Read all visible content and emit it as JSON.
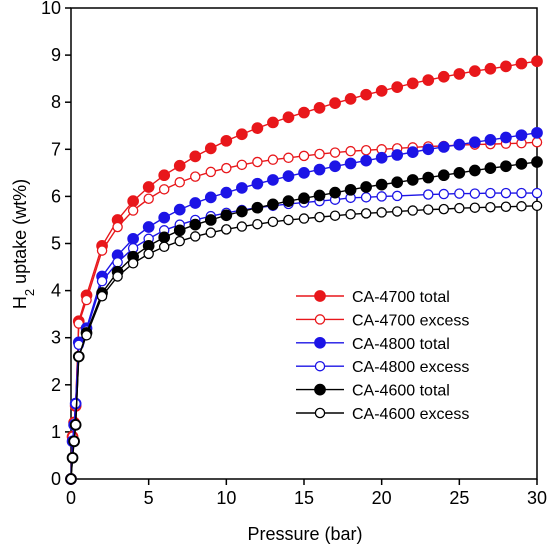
{
  "chart_data": {
    "type": "line",
    "title": "",
    "xlabel": "Pressure (bar)",
    "ylabel_main": "H",
    "ylabel_sub": "2",
    "ylabel_rest": " uptake (wt%)",
    "xlim": [
      0,
      30
    ],
    "ylim": [
      0,
      10
    ],
    "xticks": [
      0,
      5,
      10,
      15,
      20,
      25,
      30
    ],
    "yticks": [
      0,
      1,
      2,
      3,
      4,
      5,
      6,
      7,
      8,
      9,
      10
    ],
    "grid": false,
    "legend_position": "center-right",
    "series": [
      {
        "name": "CA-4700 total",
        "color": "#e8171b",
        "marker": "filled",
        "x": [
          0,
          0.1,
          0.2,
          0.3,
          0.5,
          1,
          2,
          3,
          4,
          5,
          6,
          7,
          8,
          9,
          10,
          11,
          12,
          13,
          14,
          15,
          16,
          17,
          18,
          19,
          20,
          21,
          22,
          23,
          24,
          25,
          26,
          27,
          28,
          29,
          30
        ],
        "values": [
          0,
          0.9,
          1.2,
          1.55,
          3.35,
          3.9,
          4.95,
          5.5,
          5.9,
          6.2,
          6.45,
          6.65,
          6.85,
          7.02,
          7.18,
          7.32,
          7.45,
          7.57,
          7.68,
          7.78,
          7.88,
          7.98,
          8.07,
          8.16,
          8.24,
          8.32,
          8.4,
          8.47,
          8.54,
          8.6,
          8.66,
          8.71,
          8.76,
          8.82,
          8.87
        ]
      },
      {
        "name": "CA-4700 excess",
        "color": "#e8171b",
        "marker": "open",
        "x": [
          0,
          0.1,
          0.2,
          0.3,
          0.5,
          1,
          2,
          3,
          4,
          5,
          6,
          7,
          8,
          9,
          10,
          11,
          12,
          13,
          14,
          15,
          16,
          17,
          18,
          19,
          20,
          21,
          22,
          23,
          24,
          25,
          26,
          27,
          28,
          29,
          30
        ],
        "values": [
          0,
          0.9,
          1.2,
          1.55,
          3.3,
          3.8,
          4.85,
          5.35,
          5.7,
          5.95,
          6.15,
          6.3,
          6.42,
          6.52,
          6.6,
          6.67,
          6.73,
          6.78,
          6.82,
          6.86,
          6.9,
          6.93,
          6.96,
          6.98,
          7.0,
          7.02,
          7.04,
          7.06,
          7.07,
          7.09,
          7.1,
          7.11,
          7.12,
          7.13,
          7.15
        ]
      },
      {
        "name": "CA-4800 total",
        "color": "#1c14e6",
        "marker": "filled",
        "x": [
          0,
          0.1,
          0.2,
          0.3,
          0.5,
          1,
          2,
          3,
          4,
          5,
          6,
          7,
          8,
          9,
          10,
          11,
          12,
          13,
          14,
          15,
          16,
          17,
          18,
          19,
          20,
          21,
          22,
          23,
          24,
          25,
          26,
          27,
          28,
          29,
          30
        ],
        "values": [
          0,
          0.8,
          1.15,
          1.6,
          2.9,
          3.2,
          4.3,
          4.75,
          5.1,
          5.35,
          5.55,
          5.72,
          5.86,
          5.98,
          6.08,
          6.18,
          6.27,
          6.35,
          6.43,
          6.5,
          6.57,
          6.64,
          6.7,
          6.76,
          6.82,
          6.88,
          6.94,
          7.0,
          7.05,
          7.1,
          7.15,
          7.2,
          7.25,
          7.3,
          7.35
        ]
      },
      {
        "name": "CA-4800 excess",
        "color": "#1c14e6",
        "marker": "open",
        "x": [
          0,
          0.1,
          0.2,
          0.3,
          0.5,
          1,
          2,
          3,
          4,
          5,
          6,
          7,
          8,
          9,
          10,
          11,
          12,
          13,
          14,
          15,
          16,
          17,
          18,
          19,
          20,
          21,
          23,
          24,
          25,
          26,
          27,
          28,
          29,
          30
        ],
        "values": [
          0,
          0.8,
          1.15,
          1.6,
          2.85,
          3.15,
          4.2,
          4.6,
          4.9,
          5.1,
          5.28,
          5.4,
          5.5,
          5.58,
          5.65,
          5.71,
          5.76,
          5.8,
          5.84,
          5.87,
          5.9,
          5.93,
          5.97,
          5.98,
          6.0,
          6.01,
          6.04,
          6.05,
          6.06,
          6.06,
          6.07,
          6.07,
          6.07,
          6.07
        ]
      },
      {
        "name": "CA-4600 total",
        "color": "#000000",
        "marker": "filled",
        "x": [
          0,
          0.1,
          0.2,
          0.3,
          0.5,
          1,
          2,
          3,
          4,
          5,
          6,
          7,
          8,
          9,
          10,
          11,
          12,
          13,
          14,
          15,
          16,
          17,
          18,
          19,
          20,
          21,
          22,
          23,
          24,
          25,
          26,
          27,
          28,
          29,
          30
        ],
        "values": [
          0,
          0.45,
          0.8,
          1.15,
          2.6,
          3.1,
          3.95,
          4.4,
          4.72,
          4.95,
          5.13,
          5.28,
          5.4,
          5.5,
          5.6,
          5.68,
          5.76,
          5.83,
          5.9,
          5.96,
          6.02,
          6.08,
          6.14,
          6.2,
          6.25,
          6.3,
          6.35,
          6.4,
          6.45,
          6.5,
          6.55,
          6.6,
          6.64,
          6.69,
          6.73
        ]
      },
      {
        "name": "CA-4600 excess",
        "color": "#000000",
        "marker": "open",
        "x": [
          0,
          0.1,
          0.2,
          0.3,
          0.5,
          1,
          2,
          3,
          4,
          5,
          6,
          7,
          8,
          9,
          10,
          11,
          12,
          13,
          14,
          15,
          16,
          17,
          18,
          19,
          20,
          21,
          22,
          23,
          24,
          25,
          26,
          27,
          28,
          29,
          30
        ],
        "values": [
          0,
          0.45,
          0.8,
          1.15,
          2.6,
          3.05,
          3.88,
          4.3,
          4.58,
          4.78,
          4.93,
          5.05,
          5.15,
          5.23,
          5.3,
          5.36,
          5.41,
          5.46,
          5.5,
          5.53,
          5.56,
          5.59,
          5.62,
          5.64,
          5.66,
          5.68,
          5.7,
          5.72,
          5.73,
          5.75,
          5.76,
          5.77,
          5.78,
          5.79,
          5.8
        ]
      }
    ]
  }
}
